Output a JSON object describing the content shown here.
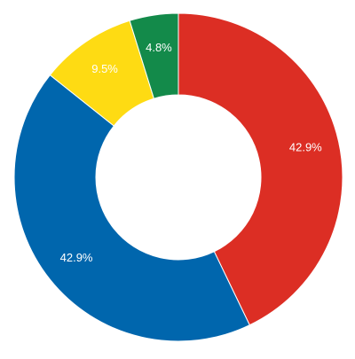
{
  "chart_data": {
    "type": "donut",
    "values": [
      42.9,
      42.9,
      9.5,
      4.8
    ],
    "value_labels": [
      "42.9%",
      "42.9%",
      "9.5%",
      "4.8%"
    ],
    "colors": [
      "#dc2e24",
      "#0066ad",
      "#fedb13",
      "#138a4a"
    ]
  }
}
